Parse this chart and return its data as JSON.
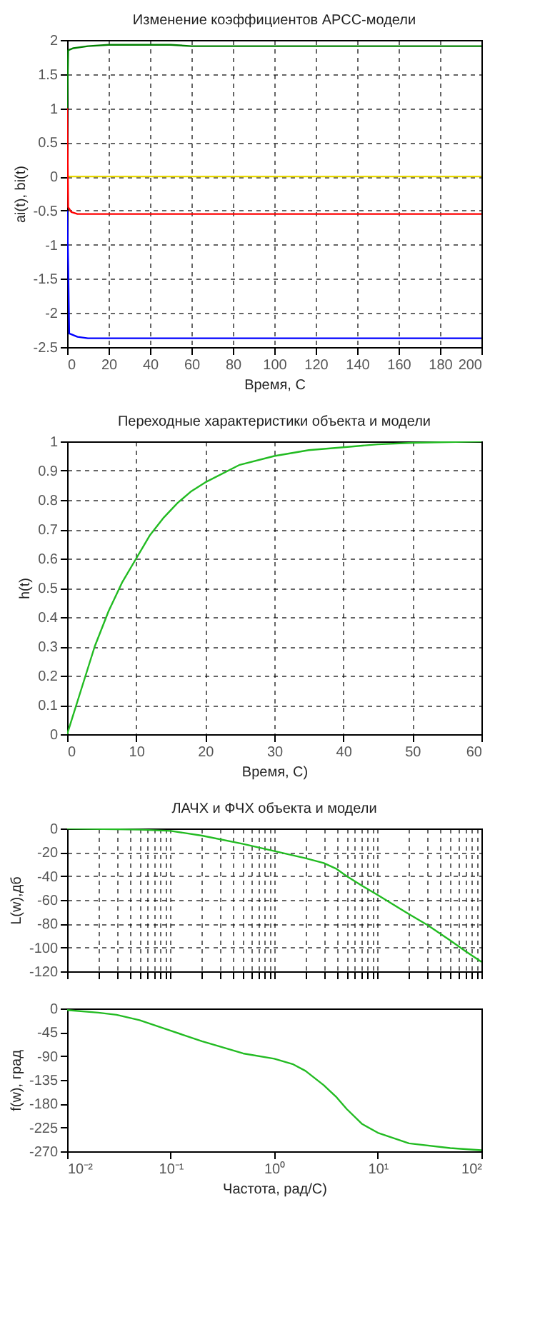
{
  "chart_data": [
    {
      "type": "line",
      "title": "Изменение коэффициентов АРСС-модели",
      "xlabel": "Время, С",
      "ylabel": "ai(t), bi(t)",
      "xlim": [
        0,
        200
      ],
      "xticks": [
        0,
        20,
        40,
        60,
        80,
        100,
        120,
        140,
        160,
        180,
        200
      ],
      "ylim": [
        -2.5,
        2
      ],
      "yticks": [
        -2.5,
        -2,
        -1.5,
        -1,
        -0.5,
        0,
        0.5,
        1,
        1.5,
        2
      ],
      "grid": true,
      "series": [
        {
          "color": "#008000",
          "x": [
            0,
            0.5,
            3,
            10,
            20,
            50,
            60,
            200
          ],
          "values": [
            1.0,
            1.85,
            1.88,
            1.91,
            1.93,
            1.93,
            1.91,
            1.91
          ]
        },
        {
          "color": "#e8d800",
          "x": [
            0,
            200
          ],
          "values": [
            0,
            0
          ]
        },
        {
          "color": "#ff0000",
          "x": [
            0,
            0.5,
            2,
            5,
            200
          ],
          "values": [
            1.0,
            -0.45,
            -0.52,
            -0.55,
            -0.55
          ]
        },
        {
          "color": "#0000ff",
          "x": [
            0,
            0.5,
            1,
            5,
            10,
            200
          ],
          "values": [
            -0.5,
            -1.3,
            -2.3,
            -2.35,
            -2.37,
            -2.37
          ]
        }
      ]
    },
    {
      "type": "line",
      "title": "Переходные характеристики объекта и модели",
      "xlabel": "Время, С)",
      "ylabel": "h(t)",
      "xlim": [
        0,
        60
      ],
      "xticks": [
        0,
        10,
        20,
        30,
        40,
        50,
        60
      ],
      "ylim": [
        0,
        1
      ],
      "yticks": [
        0,
        0.1,
        0.2,
        0.3,
        0.4,
        0.5,
        0.6,
        0.7,
        0.8,
        0.9,
        1
      ],
      "grid": true,
      "series": [
        {
          "color": "#22bb22",
          "x": [
            0,
            2,
            4,
            6,
            8,
            10,
            12,
            14,
            16,
            18,
            20,
            25,
            30,
            35,
            40,
            45,
            50,
            60
          ],
          "values": [
            0,
            0.15,
            0.3,
            0.42,
            0.52,
            0.6,
            0.68,
            0.74,
            0.79,
            0.83,
            0.86,
            0.92,
            0.95,
            0.97,
            0.98,
            0.99,
            0.995,
            1.0
          ]
        }
      ]
    },
    {
      "type": "line",
      "title": "ЛАЧХ и ФЧХ объекта и модели",
      "ylabel": "L(w),дб",
      "log": "x",
      "tick_labels": "y",
      "xlim": [
        0.01,
        100
      ],
      "xticks": [
        0.01,
        0.02,
        0.03,
        0.04,
        0.05,
        0.06,
        0.07,
        0.08,
        0.09,
        0.1,
        0.2,
        0.3,
        0.4,
        0.5,
        0.6,
        0.7,
        0.8,
        0.9,
        1,
        2,
        3,
        4,
        5,
        6,
        7,
        8,
        9,
        10,
        20,
        30,
        40,
        50,
        60,
        70,
        80,
        90,
        100
      ],
      "ylim": [
        -120,
        0
      ],
      "yticks": [
        -120,
        -100,
        -80,
        -60,
        -40,
        -20,
        0
      ],
      "grid": true,
      "series": [
        {
          "color": "#22bb22",
          "x": [
            0.01,
            0.05,
            0.1,
            0.2,
            0.5,
            1,
            2,
            3,
            4,
            5,
            7,
            10,
            20,
            30,
            50,
            70,
            100
          ],
          "values": [
            0,
            -1,
            -2,
            -6,
            -13,
            -19,
            -25,
            -29,
            -34,
            -40,
            -48,
            -56,
            -72,
            -81,
            -94,
            -103,
            -112
          ]
        }
      ]
    },
    {
      "type": "line",
      "xlabel": "Частота, рад/С)",
      "ylabel": "f(w), град",
      "log": "x",
      "xlim": [
        0.01,
        100
      ],
      "xticks": [
        {
          "value": 0.01,
          "label": "10⁻²"
        },
        {
          "value": 0.1,
          "label": "10⁻¹"
        },
        {
          "value": 1,
          "label": "10⁰"
        },
        {
          "value": 10,
          "label": "10¹"
        },
        {
          "value": 100,
          "label": "10²"
        }
      ],
      "ylim": [
        -270,
        0
      ],
      "yticks": [
        -270,
        -225,
        -180,
        -135,
        -90,
        -45,
        0
      ],
      "series": [
        {
          "color": "#22bb22",
          "x": [
            0.01,
            0.02,
            0.03,
            0.05,
            0.1,
            0.2,
            0.3,
            0.5,
            1,
            1.5,
            2,
            3,
            4,
            5,
            7,
            10,
            20,
            50,
            100
          ],
          "values": [
            -3,
            -8,
            -12,
            -22,
            -42,
            -62,
            -72,
            -85,
            -95,
            -105,
            -118,
            -145,
            -168,
            -190,
            -218,
            -235,
            -255,
            -264,
            -268
          ]
        }
      ]
    }
  ]
}
